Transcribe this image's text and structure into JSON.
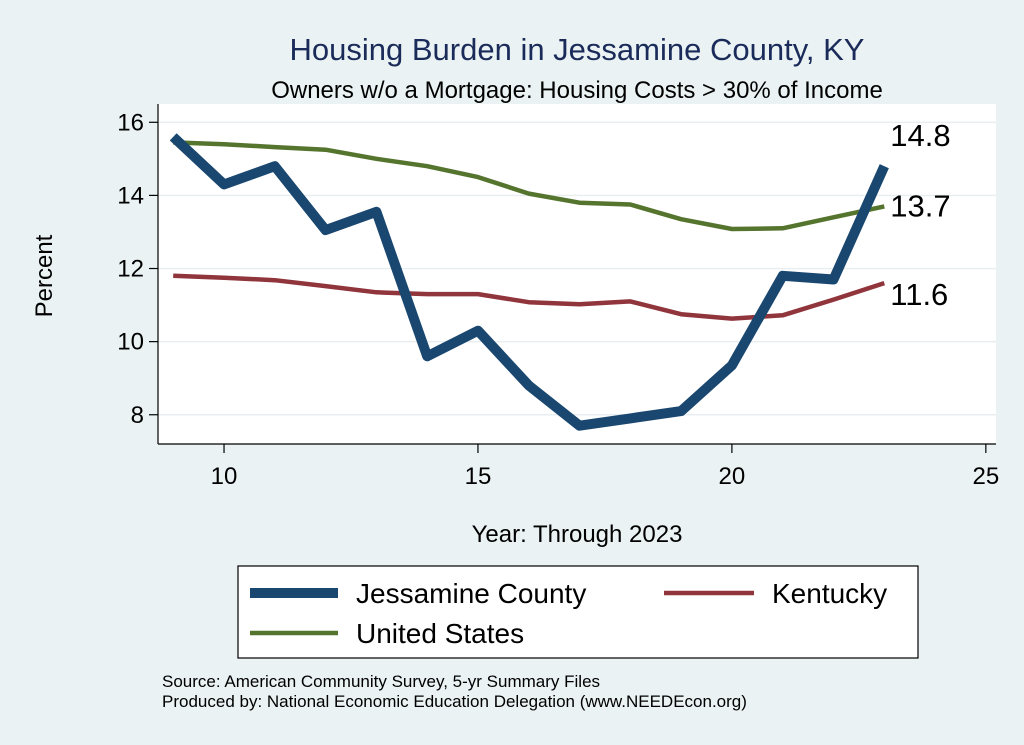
{
  "chart_data": {
    "type": "line",
    "title": "Housing Burden in Jessamine County, KY",
    "subtitle": "Owners w/o a Mortgage: Housing Costs > 30% of Income",
    "xlabel": "Year: Through 2023",
    "ylabel": "Percent",
    "xlim": [
      8.7,
      25.2
    ],
    "ylim": [
      7.2,
      16.5
    ],
    "xticks": [
      10,
      15,
      20,
      25
    ],
    "yticks": [
      8,
      10,
      12,
      14,
      16
    ],
    "grid": true,
    "x": [
      9,
      10,
      11,
      12,
      13,
      14,
      15,
      16,
      17,
      18,
      19,
      20,
      21,
      22,
      23
    ],
    "series": [
      {
        "name": "Jessamine County",
        "color": "#1a476f",
        "values": [
          15.6,
          14.3,
          14.8,
          13.05,
          13.55,
          9.6,
          10.3,
          8.8,
          7.7,
          7.9,
          8.1,
          9.35,
          11.8,
          11.7,
          14.8
        ],
        "end_label": "14.8"
      },
      {
        "name": "Kentucky",
        "color": "#90353b",
        "values": [
          11.8,
          11.75,
          11.68,
          11.52,
          11.35,
          11.3,
          11.3,
          11.08,
          11.02,
          11.1,
          10.75,
          10.63,
          10.72,
          11.15,
          11.6
        ],
        "end_label": "11.6"
      },
      {
        "name": "United States",
        "color": "#55752f",
        "values": [
          15.45,
          15.4,
          15.32,
          15.25,
          15.0,
          14.8,
          14.5,
          14.05,
          13.8,
          13.75,
          13.35,
          13.08,
          13.1,
          13.4,
          13.7
        ],
        "end_label": "13.7"
      }
    ],
    "legend": {
      "position": "bottom",
      "entries": [
        "Jessamine County",
        "Kentucky",
        "United States"
      ]
    },
    "notes": [
      "Source: American Community Survey, 5-yr Summary Files",
      "Produced by: National Economic Education Delegation (www.NEEDEcon.org)"
    ]
  }
}
